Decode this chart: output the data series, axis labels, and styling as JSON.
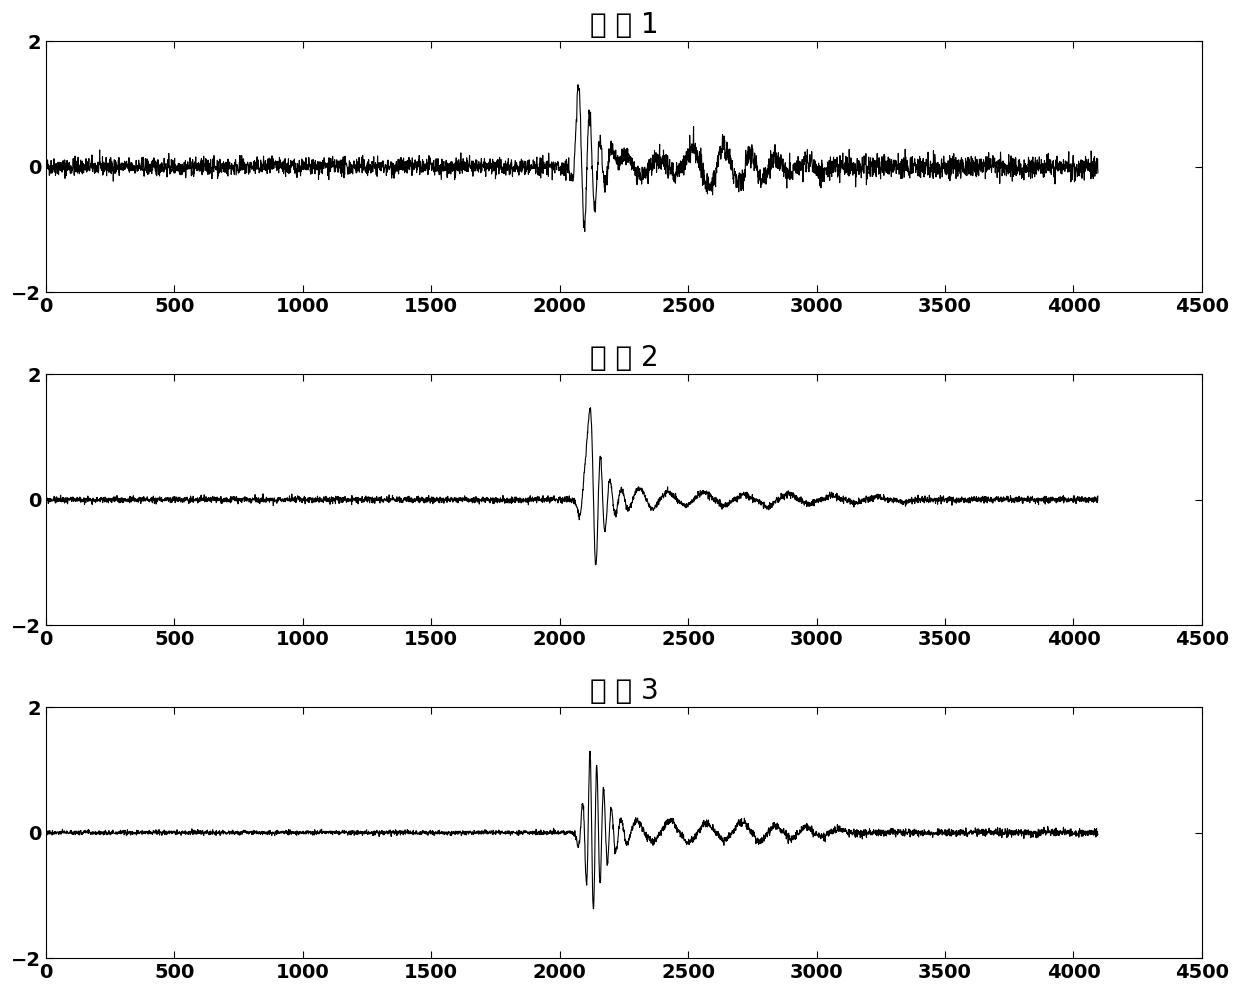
{
  "titles": [
    "通 道 1",
    "通 道 2",
    "通 道 3"
  ],
  "xlim": [
    0,
    4500
  ],
  "ylim": [
    -2,
    2
  ],
  "yticks": [
    -2,
    0,
    2
  ],
  "xticks": [
    0,
    500,
    1000,
    1500,
    2000,
    2500,
    3000,
    3500,
    4000,
    4500
  ],
  "n_samples": 4096,
  "title_fontsize": 20,
  "tick_fontsize": 14,
  "line_color": "#000000",
  "bg_color": "#ffffff",
  "linewidth": 0.8
}
